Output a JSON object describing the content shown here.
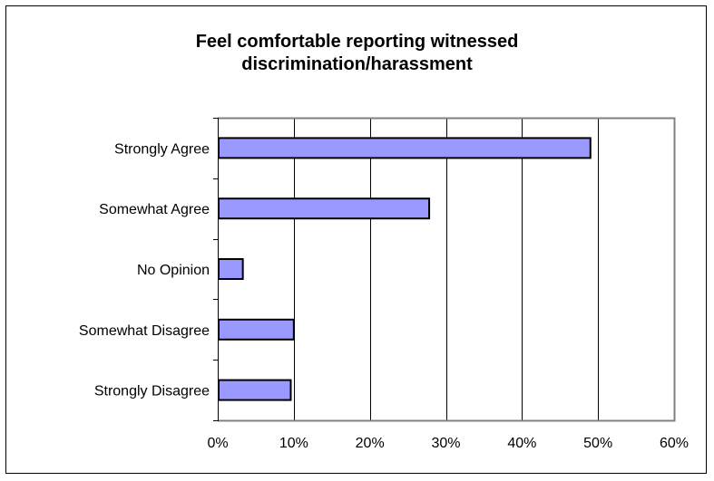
{
  "chart_data": {
    "type": "bar",
    "orientation": "horizontal",
    "title_lines": [
      "Feel comfortable reporting witnessed",
      "discrimination/harassment"
    ],
    "categories": [
      "Strongly Agree",
      "Somewhat Agree",
      "No Opinion",
      "Somewhat Disagree",
      "Strongly Disagree"
    ],
    "values": [
      49,
      27.8,
      3.3,
      10,
      9.6
    ],
    "xlim": [
      0,
      60
    ],
    "xticks": [
      0,
      10,
      20,
      30,
      40,
      50,
      60
    ],
    "xtick_labels": [
      "0%",
      "10%",
      "20%",
      "30%",
      "40%",
      "50%",
      "60%"
    ],
    "xlabel": "",
    "ylabel": "",
    "grid": "vertical",
    "legend": "none",
    "bar_color": "#9999ff",
    "bar_edge_color": "#000000",
    "grid_color": "#000000",
    "plot_border_color": "#808080"
  }
}
